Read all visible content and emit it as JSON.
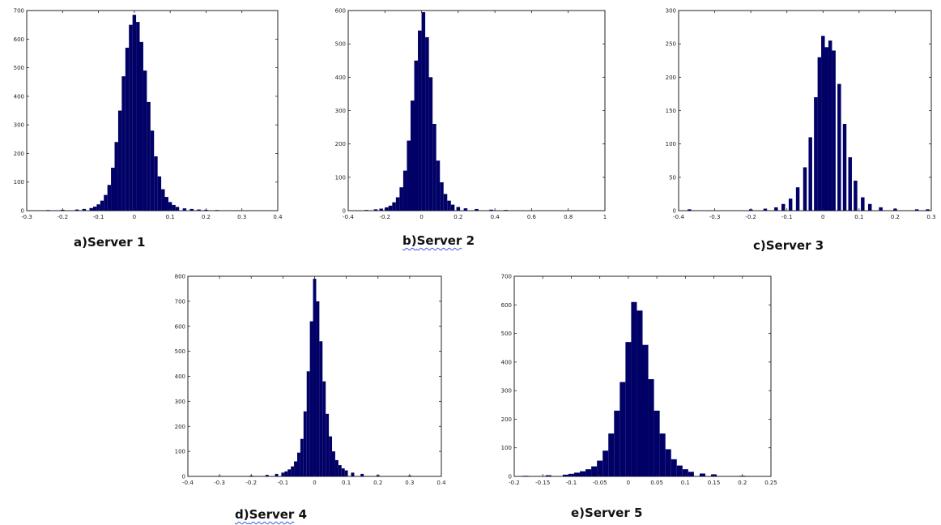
{
  "captions": [
    {
      "prefix": "a)",
      "name": "Server",
      "num": "1"
    },
    {
      "prefix": "b)",
      "name": "Server",
      "num": "2"
    },
    {
      "prefix": "c)",
      "name": "Server",
      "num": "3"
    },
    {
      "prefix": "d)",
      "name": "Server",
      "num": "4"
    },
    {
      "prefix": "e)",
      "name": "Server",
      "num": "5"
    }
  ],
  "bar_color": "#000066",
  "chart_data": [
    {
      "type": "bar",
      "title": "",
      "xlabel": "",
      "ylabel": "",
      "xlim": [
        -0.3,
        0.4
      ],
      "ylim": [
        0,
        700
      ],
      "xticks": [
        "-0.3",
        "-0.2",
        "-0.1",
        "0",
        "0.1",
        "0.2",
        "0.3",
        "0.4"
      ],
      "yticks": [
        "0",
        "100",
        "200",
        "300",
        "400",
        "500",
        "600",
        "700"
      ],
      "x": [
        -0.24,
        -0.2,
        -0.16,
        -0.14,
        -0.12,
        -0.11,
        -0.1,
        -0.09,
        -0.08,
        -0.07,
        -0.06,
        -0.05,
        -0.04,
        -0.03,
        -0.02,
        -0.01,
        0,
        0.01,
        0.02,
        0.03,
        0.04,
        0.05,
        0.06,
        0.07,
        0.08,
        0.09,
        0.1,
        0.11,
        0.12,
        0.14,
        0.16,
        0.18,
        0.2,
        0.23,
        0.29
      ],
      "values": [
        2,
        3,
        4,
        6,
        9,
        14,
        22,
        35,
        55,
        90,
        150,
        240,
        350,
        470,
        570,
        650,
        685,
        660,
        590,
        490,
        380,
        280,
        190,
        120,
        75,
        48,
        30,
        20,
        13,
        8,
        6,
        4,
        3,
        2,
        1
      ]
    },
    {
      "type": "bar",
      "title": "",
      "xlabel": "",
      "ylabel": "",
      "xlim": [
        -0.4,
        1
      ],
      "ylim": [
        0,
        600
      ],
      "xticks": [
        "-0.4",
        "-0.2",
        "0",
        "0.2",
        "0.4",
        "0.6",
        "0.8",
        "1"
      ],
      "yticks": [
        "0",
        "100",
        "200",
        "300",
        "400",
        "500",
        "600"
      ],
      "x": [
        -0.3,
        -0.25,
        -0.22,
        -0.19,
        -0.17,
        -0.15,
        -0.13,
        -0.11,
        -0.09,
        -0.07,
        -0.05,
        -0.03,
        -0.01,
        0.01,
        0.03,
        0.05,
        0.07,
        0.09,
        0.11,
        0.13,
        0.15,
        0.17,
        0.2,
        0.24,
        0.3,
        0.38,
        0.46,
        0.6,
        0.83
      ],
      "values": [
        2,
        4,
        6,
        10,
        15,
        25,
        40,
        70,
        120,
        210,
        330,
        450,
        540,
        595,
        520,
        400,
        260,
        150,
        85,
        50,
        30,
        18,
        11,
        7,
        5,
        3,
        2,
        1,
        1
      ]
    },
    {
      "type": "bar",
      "title": "",
      "xlabel": "",
      "ylabel": "",
      "xlim": [
        -0.4,
        0.3
      ],
      "ylim": [
        0,
        300
      ],
      "xticks": [
        "-0.4",
        "-0.3",
        "-0.2",
        "-0.1",
        "0",
        "0.1",
        "0.2",
        "0.3"
      ],
      "yticks": [
        "0",
        "50",
        "100",
        "150",
        "200",
        "250",
        "300"
      ],
      "x": [
        -0.37,
        -0.2,
        -0.16,
        -0.13,
        -0.11,
        -0.09,
        -0.07,
        -0.05,
        -0.035,
        -0.02,
        -0.01,
        0,
        0.01,
        0.02,
        0.03,
        0.045,
        0.06,
        0.075,
        0.09,
        0.11,
        0.13,
        0.16,
        0.2,
        0.26,
        0.29
      ],
      "values": [
        2,
        2,
        3,
        5,
        10,
        18,
        35,
        65,
        110,
        170,
        230,
        262,
        245,
        255,
        240,
        190,
        130,
        80,
        45,
        20,
        10,
        5,
        3,
        2,
        2
      ]
    },
    {
      "type": "bar",
      "title": "",
      "xlabel": "",
      "ylabel": "",
      "xlim": [
        -0.4,
        0.4
      ],
      "ylim": [
        0,
        800
      ],
      "xticks": [
        "-0.4",
        "-0.3",
        "-0.2",
        "-0.1",
        "0",
        "0.1",
        "0.2",
        "0.3",
        "0.4"
      ],
      "yticks": [
        "0",
        "100",
        "200",
        "300",
        "400",
        "500",
        "600",
        "700",
        "800"
      ],
      "x": [
        -0.3,
        -0.2,
        -0.15,
        -0.12,
        -0.1,
        -0.09,
        -0.08,
        -0.07,
        -0.06,
        -0.05,
        -0.04,
        -0.03,
        -0.02,
        -0.01,
        0,
        0.01,
        0.02,
        0.03,
        0.04,
        0.05,
        0.06,
        0.07,
        0.08,
        0.09,
        0.1,
        0.12,
        0.15,
        0.2,
        0.3
      ],
      "values": [
        2,
        3,
        6,
        10,
        15,
        20,
        28,
        40,
        60,
        95,
        150,
        260,
        420,
        620,
        790,
        700,
        540,
        380,
        250,
        160,
        100,
        65,
        45,
        32,
        24,
        15,
        10,
        5,
        3
      ]
    },
    {
      "type": "bar",
      "title": "",
      "xlabel": "",
      "ylabel": "",
      "xlim": [
        -0.2,
        0.25
      ],
      "ylim": [
        0,
        700
      ],
      "xticks": [
        "-0.2",
        "-0.15",
        "-0.1",
        "-0.05",
        "0",
        "0.05",
        "0.1",
        "0.15",
        "0.2",
        "0.25"
      ],
      "yticks": [
        "0",
        "100",
        "200",
        "300",
        "400",
        "500",
        "600",
        "700"
      ],
      "x": [
        -0.18,
        -0.14,
        -0.11,
        -0.1,
        -0.09,
        -0.08,
        -0.07,
        -0.06,
        -0.05,
        -0.04,
        -0.03,
        -0.02,
        -0.01,
        0,
        0.01,
        0.02,
        0.03,
        0.04,
        0.05,
        0.06,
        0.07,
        0.08,
        0.09,
        0.1,
        0.11,
        0.13,
        0.15,
        0.2
      ],
      "values": [
        2,
        4,
        6,
        9,
        13,
        18,
        25,
        35,
        55,
        90,
        150,
        230,
        330,
        470,
        610,
        580,
        460,
        340,
        230,
        150,
        95,
        60,
        38,
        25,
        16,
        10,
        7,
        2
      ]
    }
  ]
}
